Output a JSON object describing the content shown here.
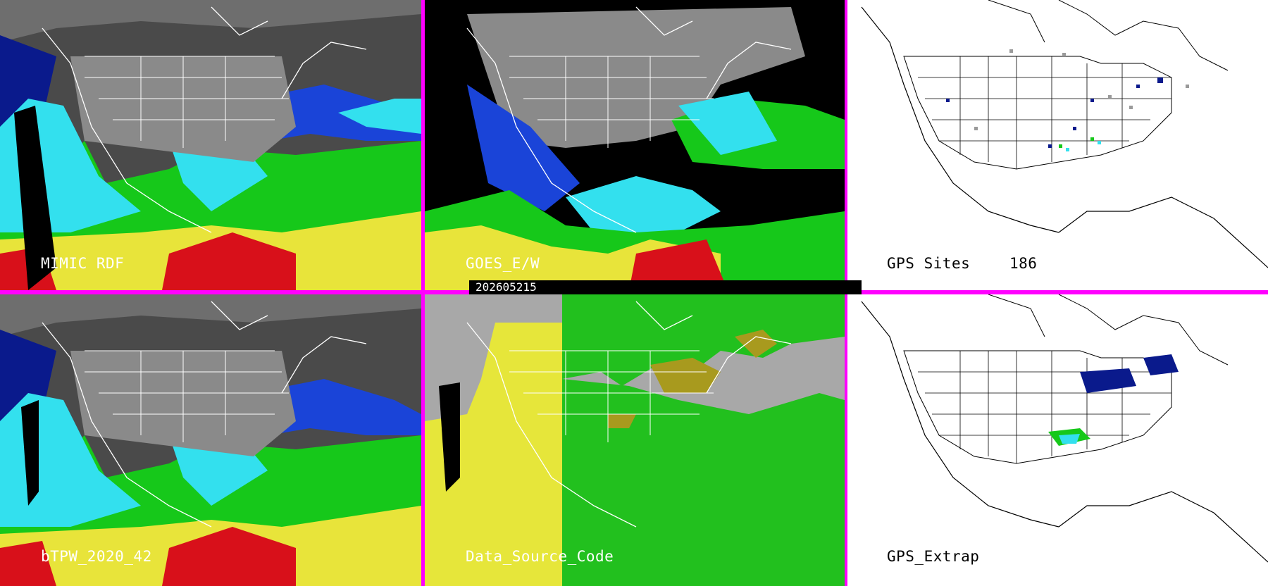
{
  "panels": {
    "mimic": {
      "label": "MIMIC RDF"
    },
    "goes": {
      "label": "GOES_E/W"
    },
    "gps_sites": {
      "label": "GPS Sites",
      "count": "186"
    },
    "btpw": {
      "label": "bTPW_2020_42"
    },
    "data_source": {
      "label": "Data_Source_Code"
    },
    "gps_extrap": {
      "label": "GPS_Extrap"
    }
  },
  "timestamp": "202605215",
  "colors": {
    "divider": "#ff00ff",
    "tpw_gray_land": "#9a9a9a",
    "tpw_dark_blue": "#0a1a8c",
    "tpw_blue": "#1a44d8",
    "tpw_cyan": "#33e0ee",
    "tpw_green": "#16c81a",
    "tpw_yellow": "#e8e43a",
    "tpw_red": "#d8101a",
    "source_yellow": "#e6e63a",
    "source_green": "#22c01e",
    "source_gray": "#a8a8a8",
    "source_olive": "#a89a1e"
  }
}
